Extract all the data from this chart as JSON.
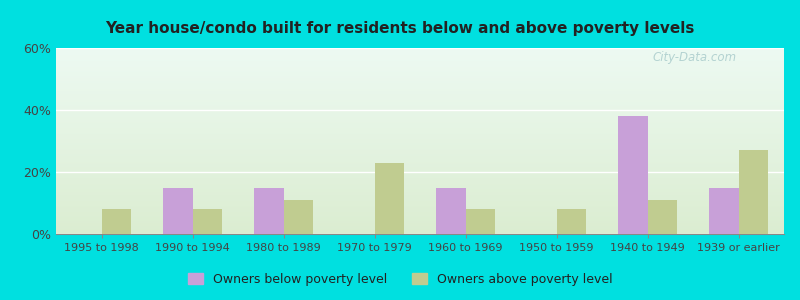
{
  "title": "Year house/condo built for residents below and above poverty levels",
  "categories": [
    "1995 to 1998",
    "1990 to 1994",
    "1980 to 1989",
    "1970 to 1979",
    "1960 to 1969",
    "1950 to 1959",
    "1940 to 1949",
    "1939 or earlier"
  ],
  "below_poverty": [
    0,
    15,
    15,
    0,
    15,
    0,
    38,
    15
  ],
  "above_poverty": [
    8,
    8,
    11,
    23,
    8,
    8,
    11,
    27
  ],
  "below_color": "#c8a0d8",
  "above_color": "#c0cc90",
  "ylim": [
    0,
    60
  ],
  "yticks": [
    0,
    20,
    40,
    60
  ],
  "yticklabels": [
    "0%",
    "20%",
    "40%",
    "60%"
  ],
  "legend_below": "Owners below poverty level",
  "legend_above": "Owners above poverty level",
  "outer_bg": "#00e0e0",
  "bar_width": 0.32,
  "watermark": "City-Data.com"
}
